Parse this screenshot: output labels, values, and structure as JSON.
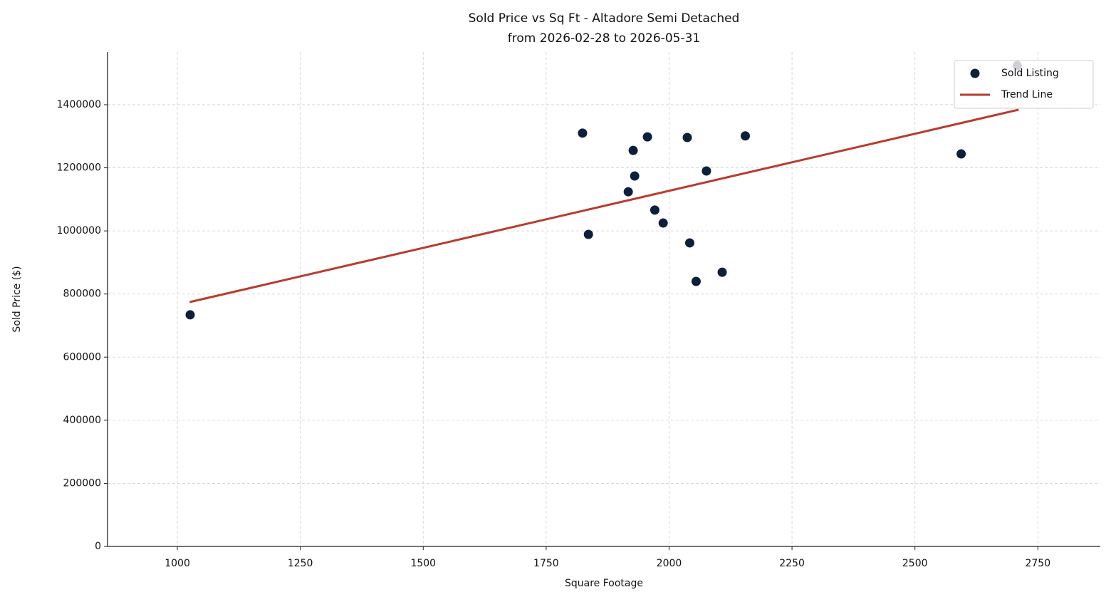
{
  "chart_data": {
    "type": "scatter",
    "title": "Sold Price vs Sq Ft - Altadore Semi Detached",
    "subtitle": "from 2026-02-28 to 2026-05-31",
    "x_label": "Square Footage",
    "y_label": "Sold Price ($)",
    "xlim": [
      858,
      2877
    ],
    "ylim": [
      0,
      1567000
    ],
    "xticks": [
      1000,
      1250,
      1500,
      1750,
      2000,
      2250,
      2500,
      2750
    ],
    "yticks": [
      0,
      200000,
      400000,
      600000,
      800000,
      1000000,
      1200000,
      1400000
    ],
    "grid": true,
    "legend": "upper right",
    "series": [
      {
        "name": "Sold Listing",
        "type": "scatter",
        "color": "#0d1f3a",
        "x": [
          1026,
          1824,
          1836,
          1917,
          1927,
          1930,
          1956,
          1971,
          1988,
          2037,
          2042,
          2055,
          2076,
          2108,
          2155,
          2594,
          2708
        ],
        "values": [
          734000,
          1310000,
          989000,
          1124000,
          1255000,
          1174000,
          1298000,
          1066000,
          1025000,
          1296000,
          962000,
          840000,
          1190000,
          869000,
          1301000,
          1244000,
          1524000
        ]
      },
      {
        "name": "Trend Line",
        "type": "line",
        "color": "#b83c2e",
        "x": [
          1025,
          2711
        ],
        "values": [
          774500,
          1384200
        ]
      }
    ]
  }
}
